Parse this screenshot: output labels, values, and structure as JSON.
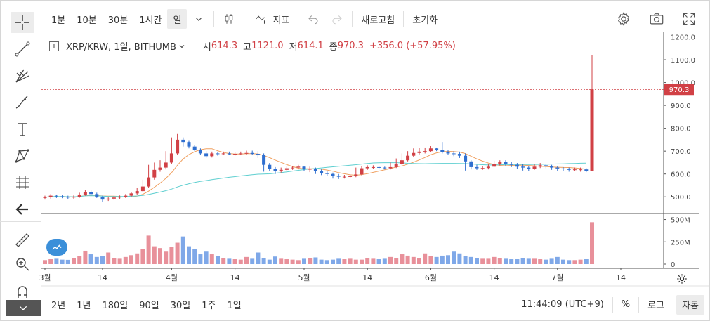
{
  "toolbar": {
    "intervals": [
      "1분",
      "10분",
      "30분",
      "1시간",
      "일"
    ],
    "selected_interval": "일",
    "indicators_label": "지표",
    "refresh_label": "새로고침",
    "reset_label": "초기화"
  },
  "legend": {
    "symbol": "XRP/KRW, 1일, BITHUMB",
    "open_label": "시",
    "open": "614.3",
    "high_label": "고",
    "high": "1121.0",
    "low_label": "저",
    "low": "614.1",
    "close_label": "종",
    "close": "970.3",
    "change": "+356.0 (+57.95%)"
  },
  "bottom": {
    "ranges": [
      "2년",
      "1년",
      "180일",
      "90일",
      "30일",
      "1주",
      "1일"
    ],
    "time": "11:44:09 (UTC+9)",
    "percent_label": "%",
    "log_label": "로그",
    "auto_label": "자동"
  },
  "colors": {
    "up": "#d14045",
    "down": "#2f6fd0",
    "ma_short": "#f0a060",
    "ma_long": "#5ecfd0",
    "vol_up": "#e8909a",
    "vol_down": "#7fa8e8",
    "price_tag": "#d14045"
  },
  "chart_data": {
    "type": "candlestick",
    "price_axis": {
      "ticks": [
        500.0,
        600.0,
        700.0,
        800.0,
        900.0,
        1000.0,
        1100.0,
        1200.0
      ],
      "tick_labels": [
        "500.0",
        "600.0",
        "700.0",
        "800.0",
        "900.0",
        "1000.0",
        "1100.0",
        "1200.0"
      ],
      "range": [
        430,
        1220
      ]
    },
    "volume_axis": {
      "ticks": [
        0,
        250,
        500
      ],
      "tick_labels": [
        "0",
        "250M",
        "500M"
      ],
      "range": [
        0,
        520
      ],
      "unit": "M"
    },
    "x_axis": {
      "labels": [
        "3월",
        "14",
        "4월",
        "14",
        "5월",
        "14",
        "6월",
        "14",
        "7월",
        "14"
      ],
      "label_index": [
        0,
        10,
        22,
        33,
        45,
        56,
        67,
        78,
        89,
        100
      ]
    },
    "last_price_label": "970.3",
    "close": [
      498,
      505,
      502,
      500,
      497,
      500,
      510,
      520,
      512,
      500,
      488,
      492,
      497,
      500,
      505,
      515,
      525,
      545,
      585,
      618,
      628,
      650,
      690,
      750,
      740,
      720,
      705,
      690,
      678,
      690,
      688,
      690,
      686,
      688,
      690,
      692,
      688,
      682,
      640,
      622,
      612,
      618,
      625,
      628,
      632,
      622,
      622,
      612,
      605,
      600,
      592,
      588,
      588,
      590,
      598,
      625,
      630,
      630,
      628,
      625,
      630,
      645,
      660,
      680,
      692,
      698,
      700,
      712,
      706,
      695,
      690,
      688,
      680,
      655,
      630,
      625,
      626,
      632,
      642,
      652,
      645,
      640,
      632,
      628,
      622,
      632,
      638,
      635,
      628,
      624,
      622,
      618,
      620,
      620,
      614,
      970.3
    ],
    "open": [
      495,
      498,
      505,
      502,
      500,
      497,
      500,
      510,
      520,
      512,
      500,
      488,
      492,
      497,
      500,
      505,
      515,
      525,
      545,
      585,
      618,
      628,
      650,
      690,
      750,
      740,
      720,
      705,
      690,
      678,
      690,
      688,
      690,
      686,
      688,
      690,
      692,
      688,
      682,
      640,
      622,
      612,
      618,
      625,
      628,
      632,
      622,
      622,
      612,
      605,
      600,
      592,
      588,
      588,
      590,
      598,
      625,
      630,
      630,
      628,
      625,
      630,
      645,
      660,
      680,
      692,
      698,
      700,
      712,
      706,
      695,
      690,
      688,
      680,
      655,
      630,
      625,
      626,
      632,
      642,
      652,
      645,
      640,
      632,
      628,
      622,
      632,
      638,
      635,
      628,
      624,
      622,
      618,
      620,
      620,
      614.3
    ],
    "high": [
      505,
      512,
      510,
      508,
      505,
      506,
      518,
      530,
      528,
      518,
      505,
      500,
      503,
      506,
      512,
      522,
      540,
      575,
      640,
      650,
      660,
      700,
      760,
      775,
      760,
      745,
      728,
      712,
      700,
      698,
      698,
      698,
      698,
      696,
      698,
      702,
      702,
      700,
      690,
      648,
      630,
      628,
      632,
      635,
      640,
      635,
      632,
      628,
      620,
      612,
      606,
      600,
      596,
      598,
      628,
      636,
      638,
      638,
      636,
      632,
      650,
      668,
      690,
      700,
      712,
      716,
      716,
      722,
      716,
      740,
      705,
      700,
      698,
      690,
      660,
      640,
      636,
      642,
      658,
      660,
      660,
      652,
      648,
      642,
      636,
      645,
      648,
      645,
      640,
      634,
      630,
      628,
      628,
      628,
      625,
      1121.0
    ],
    "low": [
      488,
      492,
      495,
      494,
      490,
      492,
      496,
      505,
      505,
      495,
      478,
      482,
      486,
      490,
      495,
      500,
      508,
      520,
      540,
      575,
      610,
      620,
      645,
      685,
      720,
      712,
      700,
      685,
      670,
      672,
      680,
      682,
      682,
      680,
      682,
      684,
      682,
      670,
      610,
      612,
      600,
      606,
      612,
      618,
      620,
      612,
      608,
      600,
      595,
      590,
      580,
      578,
      580,
      582,
      586,
      594,
      618,
      622,
      620,
      620,
      620,
      626,
      640,
      655,
      674,
      686,
      690,
      696,
      700,
      690,
      682,
      678,
      670,
      615,
      620,
      618,
      618,
      620,
      630,
      638,
      636,
      630,
      622,
      615,
      612,
      618,
      626,
      625,
      618,
      612,
      612,
      610,
      612,
      610,
      608,
      614.1
    ],
    "volume": [
      45,
      55,
      60,
      50,
      48,
      70,
      90,
      150,
      110,
      80,
      90,
      130,
      70,
      60,
      80,
      100,
      120,
      170,
      320,
      200,
      180,
      140,
      190,
      240,
      310,
      200,
      170,
      110,
      140,
      110,
      90,
      70,
      60,
      55,
      50,
      80,
      60,
      130,
      70,
      50,
      85,
      60,
      55,
      50,
      45,
      60,
      70,
      75,
      50,
      45,
      50,
      60,
      55,
      60,
      50,
      50,
      70,
      60,
      55,
      60,
      80,
      70,
      110,
      95,
      80,
      70,
      120,
      90,
      80,
      95,
      100,
      140,
      120,
      90,
      80,
      70,
      60,
      60,
      80,
      70,
      60,
      55,
      55,
      70,
      60,
      60,
      55,
      50,
      60,
      80,
      50,
      45,
      45,
      50,
      55,
      470
    ]
  }
}
